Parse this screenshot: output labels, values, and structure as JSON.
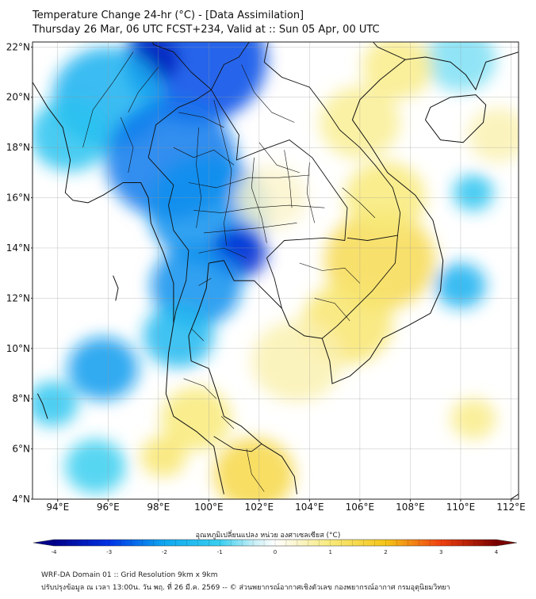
{
  "header": {
    "title_line1": "Temperature Change 24-hr (°C) - [Data Assimilation]",
    "title_line2": "Thursday 26 Mar, 06 UTC FCST+234, Valid at :: Sun 05 Apr, 00 UTC"
  },
  "map": {
    "lon_range": [
      93,
      112.3
    ],
    "lat_range": [
      4,
      22.2
    ],
    "lat_ticks": [
      {
        "value": 22,
        "label": "22°N"
      },
      {
        "value": 20,
        "label": "20°N"
      },
      {
        "value": 18,
        "label": "18°N"
      },
      {
        "value": 16,
        "label": "16°N"
      },
      {
        "value": 14,
        "label": "14°N"
      },
      {
        "value": 12,
        "label": "12°N"
      },
      {
        "value": 10,
        "label": "10°N"
      },
      {
        "value": 8,
        "label": "8°N"
      },
      {
        "value": 6,
        "label": "6°N"
      },
      {
        "value": 4,
        "label": "4°N"
      }
    ],
    "lon_ticks": [
      {
        "value": 94,
        "label": "94°E"
      },
      {
        "value": 96,
        "label": "96°E"
      },
      {
        "value": 98,
        "label": "98°E"
      },
      {
        "value": 100,
        "label": "100°E"
      },
      {
        "value": 102,
        "label": "102°E"
      },
      {
        "value": 104,
        "label": "104°E"
      },
      {
        "value": 106,
        "label": "106°E"
      },
      {
        "value": 108,
        "label": "108°E"
      },
      {
        "value": 110,
        "label": "110°E"
      },
      {
        "value": 112,
        "label": "112°E"
      }
    ],
    "field_blobs": [
      {
        "lon": 99.5,
        "lat": 21.5,
        "value": -2.8,
        "r": 2.8
      },
      {
        "lon": 97.8,
        "lat": 21.5,
        "value": -3.5,
        "r": 1.0
      },
      {
        "lon": 96.0,
        "lat": 20.0,
        "value": -1.8,
        "r": 2.2
      },
      {
        "lon": 94.5,
        "lat": 18.5,
        "value": -1.3,
        "r": 1.6
      },
      {
        "lon": 98.5,
        "lat": 17.5,
        "value": -2.4,
        "r": 2.6
      },
      {
        "lon": 100.0,
        "lat": 15.5,
        "value": -2.2,
        "r": 2.4
      },
      {
        "lon": 101.2,
        "lat": 13.8,
        "value": -3.2,
        "r": 1.1
      },
      {
        "lon": 99.5,
        "lat": 12.5,
        "value": -2.2,
        "r": 1.8
      },
      {
        "lon": 98.8,
        "lat": 10.5,
        "value": -1.6,
        "r": 1.4
      },
      {
        "lon": 95.8,
        "lat": 9.2,
        "value": -2.1,
        "r": 1.4
      },
      {
        "lon": 93.8,
        "lat": 7.8,
        "value": -1.2,
        "r": 1.0
      },
      {
        "lon": 95.5,
        "lat": 5.3,
        "value": -1.0,
        "r": 1.2
      },
      {
        "lon": 110.0,
        "lat": 12.5,
        "value": -1.8,
        "r": 1.0
      },
      {
        "lon": 110.5,
        "lat": 16.2,
        "value": -1.3,
        "r": 0.8
      },
      {
        "lon": 110.0,
        "lat": 21.5,
        "value": -0.7,
        "r": 1.4
      },
      {
        "lon": 106.8,
        "lat": 13.5,
        "value": 1.4,
        "r": 2.2
      },
      {
        "lon": 107.0,
        "lat": 16.0,
        "value": 1.0,
        "r": 1.6
      },
      {
        "lon": 105.5,
        "lat": 11.0,
        "value": 1.1,
        "r": 1.8
      },
      {
        "lon": 106.0,
        "lat": 19.0,
        "value": 0.8,
        "r": 1.6
      },
      {
        "lon": 107.5,
        "lat": 21.2,
        "value": 0.9,
        "r": 1.4
      },
      {
        "lon": 101.8,
        "lat": 5.0,
        "value": 1.5,
        "r": 1.6
      },
      {
        "lon": 99.5,
        "lat": 7.2,
        "value": 1.0,
        "r": 1.4
      },
      {
        "lon": 98.2,
        "lat": 5.7,
        "value": 1.1,
        "r": 0.9
      },
      {
        "lon": 110.5,
        "lat": 7.2,
        "value": 0.9,
        "r": 0.9
      },
      {
        "lon": 111.5,
        "lat": 18.5,
        "value": 0.6,
        "r": 1.2
      },
      {
        "lon": 103.5,
        "lat": 9.5,
        "value": 0.6,
        "r": 1.8
      },
      {
        "lon": 102.5,
        "lat": 16.0,
        "value": 0.4,
        "r": 1.4
      }
    ]
  },
  "colorbar": {
    "label": "อุณหภูมิเปลี่ยนแปลง หน่วย องศาเซลเซียส (°C)",
    "min": -4,
    "max": 4,
    "ticks": [
      {
        "value": -4,
        "label": "-4"
      },
      {
        "value": -3,
        "label": "-3"
      },
      {
        "value": -2,
        "label": "-2"
      },
      {
        "value": -1,
        "label": "-1"
      },
      {
        "value": 0,
        "label": "0"
      },
      {
        "value": 1,
        "label": "1"
      },
      {
        "value": 2,
        "label": "2"
      },
      {
        "value": 3,
        "label": "3"
      },
      {
        "value": 4,
        "label": "4"
      }
    ],
    "stops": [
      {
        "value": -4,
        "color": "#00008a"
      },
      {
        "value": -3,
        "color": "#0033e6"
      },
      {
        "value": -2,
        "color": "#0fa8f0"
      },
      {
        "value": -1,
        "color": "#38cff0"
      },
      {
        "value": -0.4,
        "color": "#c4eef7"
      },
      {
        "value": 0,
        "color": "#ffffff"
      },
      {
        "value": 0.4,
        "color": "#fbf5cc"
      },
      {
        "value": 1,
        "color": "#f8ea7a"
      },
      {
        "value": 2,
        "color": "#f5c518"
      },
      {
        "value": 3,
        "color": "#f04010"
      },
      {
        "value": 4,
        "color": "#7a0000"
      }
    ]
  },
  "footer": {
    "line1": "WRF-DA Domain 01 :: Grid Resolution 9km x 9km",
    "line2": "ปรับปรุงข้อมูล ณ เวลา 13:00น. วัน พฤ. ที่ 26 มี.ค. 2569 -- © ส่วนพยากรณ์อากาศเชิงตัวเลข กองพยากรณ์อากาศ กรมอุตุนิยมวิทยา"
  }
}
